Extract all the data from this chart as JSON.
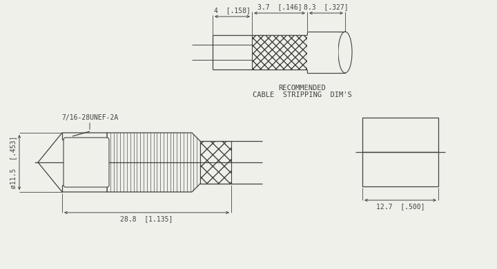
{
  "bg_color": "#f0f0eb",
  "line_color": "#404040",
  "dim_labels": {
    "top_3p7": "3.7  [.146]",
    "top_4": "4  [.158]",
    "top_8p3": "8.3  [.327]",
    "main_11p5": "ø11.5  [.453]",
    "main_28p8": "28.8  [1.135]",
    "side_12p7": "12.7  [.500]",
    "thread": "7/16-28UNEF-2A",
    "recommended_1": "RECOMMENDED",
    "recommended_2": "CABLE  STRIPPING  DIM'S"
  },
  "font_size": 7.0
}
